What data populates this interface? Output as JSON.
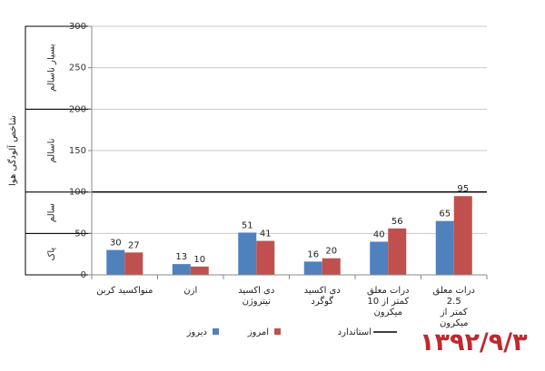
{
  "chart_data": {
    "type": "bar",
    "categories": [
      [
        "منواکسید کربن"
      ],
      [
        "ازن"
      ],
      [
        "دی اکسید",
        "نیتروژن"
      ],
      [
        "دی اکسید",
        "گوگرد"
      ],
      [
        "درات معلق",
        "10 کمتر از",
        "میکرون"
      ],
      [
        "درات معلق",
        "2.5",
        "کمتر از",
        "میکرون"
      ]
    ],
    "series": [
      {
        "name": "دیروز",
        "color": "#4f81bd",
        "values": [
          30,
          13,
          51,
          16,
          40,
          65
        ]
      },
      {
        "name": "امروز",
        "color": "#c0504d",
        "values": [
          27,
          10,
          41,
          20,
          56,
          95
        ]
      }
    ],
    "standard": {
      "name": "استاندارد",
      "value": 100,
      "color": "#000000"
    },
    "ylabel": "شاخص آلودگی هوا",
    "ylim": [
      0,
      300
    ],
    "yticks": [
      0,
      50,
      100,
      150,
      200,
      250,
      300
    ],
    "bands": [
      {
        "label": "پاک",
        "from": 0,
        "to": 50
      },
      {
        "label": "سالم",
        "from": 50,
        "to": 100
      },
      {
        "label": "ناسالم",
        "from": 100,
        "to": 200
      },
      {
        "label": "بسیار ناسالم",
        "from": 200,
        "to": 300
      }
    ],
    "grid": true,
    "legend_position": "bottom"
  },
  "date_stamp": "۱۳۹۲/۹/۳"
}
